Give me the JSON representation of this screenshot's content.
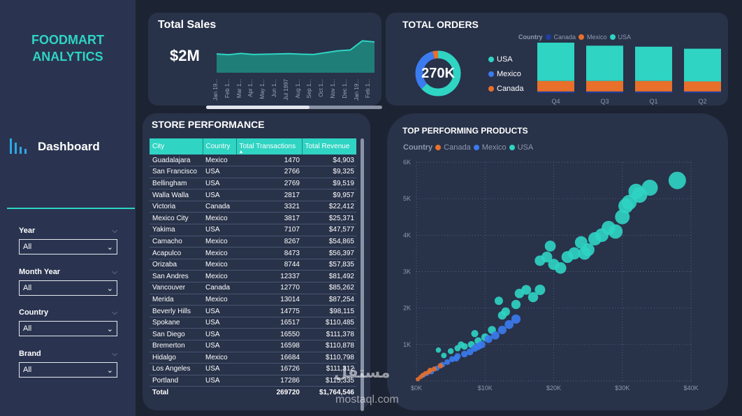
{
  "sidebar": {
    "brand_line1": "FOODMART",
    "brand_line2": "ANALYTICS",
    "nav_label": "Dashboard",
    "filters": [
      {
        "label": "Year",
        "value": "All"
      },
      {
        "label": "Month Year",
        "value": "All"
      },
      {
        "label": "Country",
        "value": "All"
      },
      {
        "label": "Brand",
        "value": "All"
      }
    ]
  },
  "sales": {
    "title": "Total Sales",
    "value": "$2M",
    "ticks": [
      "Jan 19...",
      "Feb 1...",
      "Mar 1...",
      "Apr 1...",
      "May 1...",
      "Jun 1...",
      "Jul 1997",
      "Aug 1...",
      "Sep 1...",
      "Oct 1...",
      "Nov 1...",
      "Dec 1...",
      "Jan 19...",
      "Feb 1..."
    ]
  },
  "orders": {
    "title": "TOTAL ORDERS",
    "legend_title": "Country",
    "legend": [
      {
        "name": "Canada",
        "color": "#1f3f9e"
      },
      {
        "name": "Mexico",
        "color": "#e8702a"
      },
      {
        "name": "USA",
        "color": "#2fd4c3"
      }
    ],
    "donut_value": "270K",
    "donut_legend": [
      {
        "name": "USA",
        "color": "#2fd4c3"
      },
      {
        "name": "Mexico",
        "color": "#3b7bf0"
      },
      {
        "name": "Canada",
        "color": "#e8702a"
      }
    ],
    "quarters": [
      "Q4",
      "Q3",
      "Q1",
      "Q2"
    ]
  },
  "store": {
    "title": "STORE PERFORMANCE",
    "columns": [
      "City",
      "Country",
      "Total Transactions",
      "Total Revenue"
    ],
    "rows": [
      [
        "Guadalajara",
        "Mexico",
        "1470",
        "$4,903"
      ],
      [
        "San Francisco",
        "USA",
        "2766",
        "$9,325"
      ],
      [
        "Bellingham",
        "USA",
        "2769",
        "$9,519"
      ],
      [
        "Walla Walla",
        "USA",
        "2817",
        "$9,957"
      ],
      [
        "Victoria",
        "Canada",
        "3321",
        "$22,412"
      ],
      [
        "Mexico City",
        "Mexico",
        "3817",
        "$25,371"
      ],
      [
        "Yakima",
        "USA",
        "7107",
        "$47,577"
      ],
      [
        "Camacho",
        "Mexico",
        "8267",
        "$54,865"
      ],
      [
        "Acapulco",
        "Mexico",
        "8473",
        "$56,397"
      ],
      [
        "Orizaba",
        "Mexico",
        "8744",
        "$57,835"
      ],
      [
        "San Andres",
        "Mexico",
        "12337",
        "$81,492"
      ],
      [
        "Vancouver",
        "Canada",
        "12770",
        "$85,262"
      ],
      [
        "Merida",
        "Mexico",
        "13014",
        "$87,254"
      ],
      [
        "Beverly Hills",
        "USA",
        "14775",
        "$98,115"
      ],
      [
        "Spokane",
        "USA",
        "16517",
        "$110,485"
      ],
      [
        "San Diego",
        "USA",
        "16550",
        "$111,378"
      ],
      [
        "Bremerton",
        "USA",
        "16598",
        "$110,878"
      ],
      [
        "Hidalgo",
        "Mexico",
        "16684",
        "$110,798"
      ],
      [
        "Los Angeles",
        "USA",
        "16726",
        "$111,312"
      ],
      [
        "Portland",
        "USA",
        "17286",
        "$115,335"
      ]
    ],
    "total": [
      "Total",
      "",
      "269720",
      "$1,764,546"
    ]
  },
  "products": {
    "title": "TOP PERFORMING PRODUCTS",
    "legend_title": "Country",
    "legend": [
      {
        "name": "Canada",
        "color": "#e8702a"
      },
      {
        "name": "Mexico",
        "color": "#3b7bf0"
      },
      {
        "name": "USA",
        "color": "#2fd4c3"
      }
    ],
    "y_ticks": [
      "6K",
      "5K",
      "4K",
      "3K",
      "2K",
      "1K"
    ],
    "x_ticks": [
      "$0K",
      "$10K",
      "$20K",
      "$30K",
      "$40K"
    ]
  },
  "watermark": {
    "text": "مستقل",
    "sub": "mostaql.com"
  },
  "chart_data": [
    {
      "type": "area",
      "title": "Total Sales",
      "categories": [
        "Jan 19...",
        "Feb 1...",
        "Mar 1...",
        "Apr 1...",
        "May 1...",
        "Jun 1...",
        "Jul 1997",
        "Aug 1...",
        "Sep 1...",
        "Oct 1...",
        "Nov 1...",
        "Dec 1...",
        "Jan 19...",
        "Feb 1..."
      ],
      "values": [
        0.5,
        0.47,
        0.52,
        0.48,
        0.49,
        0.5,
        0.51,
        0.49,
        0.48,
        0.55,
        0.62,
        0.65,
        1.0,
        0.96
      ]
    },
    {
      "type": "pie",
      "title": "TOTAL ORDERS",
      "labels": [
        "USA",
        "Mexico",
        "Canada"
      ],
      "values": [
        0.63,
        0.33,
        0.04
      ]
    },
    {
      "type": "bar",
      "stacked": true,
      "categories": [
        "Q4",
        "Q3",
        "Q1",
        "Q2"
      ],
      "series": [
        {
          "name": "Canada",
          "values": [
            3,
            3,
            3,
            3
          ]
        },
        {
          "name": "Mexico",
          "values": [
            21,
            21,
            21,
            20
          ]
        },
        {
          "name": "USA",
          "values": [
            76,
            70,
            68,
            65
          ]
        }
      ]
    },
    {
      "type": "scatter",
      "title": "TOP PERFORMING PRODUCTS",
      "xlim": [
        0,
        40000
      ],
      "ylim": [
        0,
        6000
      ],
      "series": [
        {
          "name": "Canada",
          "points": [
            [
              200,
              50
            ],
            [
              600,
              110
            ],
            [
              900,
              160
            ],
            [
              1300,
              210
            ],
            [
              2000,
              300
            ],
            [
              2600,
              330
            ],
            [
              3500,
              420
            ],
            [
              1800,
              250
            ]
          ]
        },
        {
          "name": "Mexico",
          "points": [
            [
              1000,
              150
            ],
            [
              1500,
              200
            ],
            [
              2200,
              250
            ],
            [
              3000,
              350
            ],
            [
              3800,
              450
            ],
            [
              4500,
              520
            ],
            [
              5200,
              600
            ],
            [
              6000,
              680
            ],
            [
              7000,
              740
            ],
            [
              7800,
              800
            ],
            [
              8500,
              900
            ],
            [
              9500,
              1000
            ],
            [
              10500,
              1150
            ],
            [
              11500,
              1250
            ],
            [
              12500,
              1400
            ],
            [
              13500,
              1550
            ],
            [
              14500,
              1700
            ],
            [
              5800,
              620
            ],
            [
              9000,
              950
            ]
          ]
        },
        {
          "name": "USA",
          "points": [
            [
              3200,
              850
            ],
            [
              4000,
              700
            ],
            [
              5000,
              820
            ],
            [
              6000,
              900
            ],
            [
              7000,
              950
            ],
            [
              8000,
              1000
            ],
            [
              9000,
              1100
            ],
            [
              10000,
              1200
            ],
            [
              11000,
              1400
            ],
            [
              12000,
              2200
            ],
            [
              13000,
              1900
            ],
            [
              14500,
              2100
            ],
            [
              15000,
              2400
            ],
            [
              16000,
              2500
            ],
            [
              17000,
              2300
            ],
            [
              18000,
              2500
            ],
            [
              18000,
              3300
            ],
            [
              19000,
              3400
            ],
            [
              20000,
              3200
            ],
            [
              21000,
              3100
            ],
            [
              22000,
              3400
            ],
            [
              23000,
              3500
            ],
            [
              24000,
              3800
            ],
            [
              25000,
              3600
            ],
            [
              26000,
              3900
            ],
            [
              27000,
              4000
            ],
            [
              28000,
              4200
            ],
            [
              29000,
              4100
            ],
            [
              30000,
              4500
            ],
            [
              30500,
              4800
            ],
            [
              31000,
              4900
            ],
            [
              32000,
              5200
            ],
            [
              32500,
              5100
            ],
            [
              34000,
              5300
            ],
            [
              38000,
              5500
            ],
            [
              12500,
              1800
            ],
            [
              8500,
              1300
            ],
            [
              6500,
              1000
            ],
            [
              19500,
              3700
            ],
            [
              24500,
              3500
            ]
          ]
        }
      ]
    }
  ]
}
